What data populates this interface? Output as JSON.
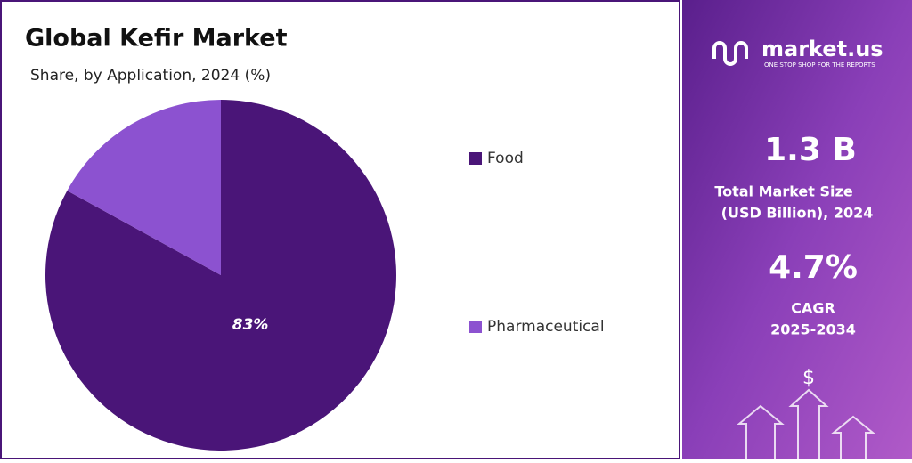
{
  "chart_data": {
    "type": "pie",
    "title": "Global Kefir Market",
    "subtitle": "Share, by Application, 2024 (%)",
    "categories": [
      "Food",
      "Pharmaceutical"
    ],
    "values": [
      83,
      17
    ],
    "value_labels": [
      "83%",
      null
    ],
    "colors": [
      "#4a1578",
      "#8c52d0"
    ],
    "legend": "right"
  },
  "panel": {
    "brand": "market.us",
    "tagline": "ONE STOP SHOP FOR THE REPORTS",
    "stats": [
      {
        "value": "1.3 B",
        "label": [
          "Total Market Size",
          "(USD Billion), 2024"
        ]
      },
      {
        "value": "4.7%",
        "label": [
          "CAGR",
          "2025-2034"
        ]
      }
    ]
  }
}
